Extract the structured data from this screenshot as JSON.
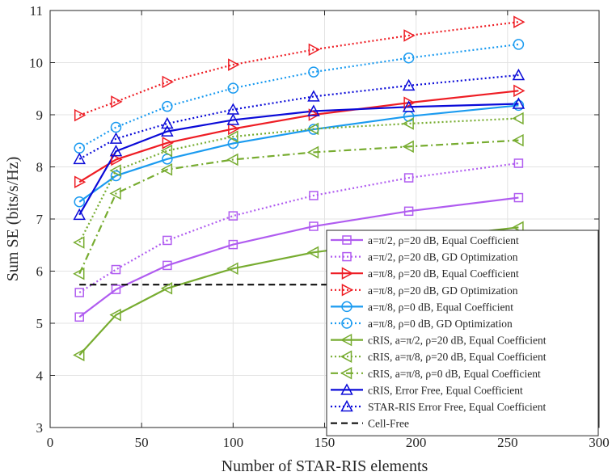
{
  "chart_data": {
    "type": "line",
    "title": "",
    "xlabel": "Number of STAR-RIS elements",
    "ylabel": "Sum SE (bits/s/Hz)",
    "xlim": [
      0,
      300
    ],
    "ylim": [
      3,
      11
    ],
    "xticks": [
      0,
      50,
      100,
      150,
      200,
      250,
      300
    ],
    "yticks": [
      3,
      4,
      5,
      6,
      7,
      8,
      9,
      10,
      11
    ],
    "grid": true,
    "legend_position": "bottom-right",
    "x": [
      16,
      36,
      64,
      100,
      144,
      196,
      256
    ],
    "series": [
      {
        "name": "a=π/2, ρ=20 dB, Equal Coefficient",
        "color": "#b05cf0",
        "dash": "solid",
        "marker": "square",
        "values": [
          5.12,
          5.65,
          6.11,
          6.51,
          6.86,
          7.15,
          7.41
        ]
      },
      {
        "name": "a=π/2, ρ=20 dB, GD Optimization",
        "color": "#b05cf0",
        "dash": "dotted",
        "marker": "square",
        "values": [
          5.59,
          6.03,
          6.59,
          7.06,
          7.45,
          7.79,
          8.07
        ]
      },
      {
        "name": "a=π/8, ρ=20 dB, Equal Coefficient",
        "color": "#ee1d24",
        "dash": "solid",
        "marker": "triangle-right",
        "values": [
          7.71,
          8.14,
          8.46,
          8.73,
          9.0,
          9.23,
          9.46
        ]
      },
      {
        "name": "a=π/8, ρ=20 dB, GD Optimization",
        "color": "#ee1d24",
        "dash": "dotted",
        "marker": "triangle-right",
        "values": [
          8.99,
          9.25,
          9.63,
          9.96,
          10.25,
          10.52,
          10.78
        ]
      },
      {
        "name": "a=π/8, ρ=0 dB, Equal Coefficient",
        "color": "#1b9bf0",
        "dash": "solid",
        "marker": "circle",
        "values": [
          7.33,
          7.83,
          8.15,
          8.45,
          8.72,
          8.97,
          9.18
        ]
      },
      {
        "name": "a=π/8, ρ=0 dB, GD Optimization",
        "color": "#1b9bf0",
        "dash": "dotted",
        "marker": "circle",
        "values": [
          8.36,
          8.76,
          9.16,
          9.51,
          9.82,
          10.09,
          10.35
        ]
      },
      {
        "name": "cRIS, a=π/2, ρ=20 dB, Equal Coefficient",
        "color": "#77ac30",
        "dash": "solid",
        "marker": "triangle-left",
        "values": [
          4.39,
          5.16,
          5.67,
          6.05,
          6.36,
          6.6,
          6.84
        ]
      },
      {
        "name": "cRIS, a=π/8, ρ=20 dB, Equal Coefficient",
        "color": "#77ac30",
        "dash": "dotted",
        "marker": "triangle-left",
        "values": [
          6.55,
          7.93,
          8.31,
          8.58,
          8.73,
          8.83,
          8.93
        ]
      },
      {
        "name": "cRIS, a=π/8, ρ=0 dB, Equal Coefficient",
        "color": "#77ac30",
        "dash": "dashdot",
        "marker": "triangle-left",
        "values": [
          5.95,
          7.49,
          7.95,
          8.14,
          8.28,
          8.39,
          8.51
        ]
      },
      {
        "name": "cRIS, Error Free, Equal Coefficient",
        "color": "#0a0ad8",
        "dash": "solid",
        "marker": "triangle-up",
        "values": [
          7.08,
          8.3,
          8.68,
          8.9,
          9.07,
          9.15,
          9.21
        ]
      },
      {
        "name": "STAR-RIS Error Free, Equal Coefficient",
        "color": "#0a0ad8",
        "dash": "dotted",
        "marker": "triangle-up",
        "values": [
          8.15,
          8.54,
          8.83,
          9.1,
          9.35,
          9.56,
          9.76
        ]
      },
      {
        "name": "Cell-Free",
        "color": "#000000",
        "dash": "dashed",
        "marker": "none",
        "x": [
          16,
          256
        ],
        "values": [
          5.74,
          5.74
        ]
      }
    ]
  }
}
